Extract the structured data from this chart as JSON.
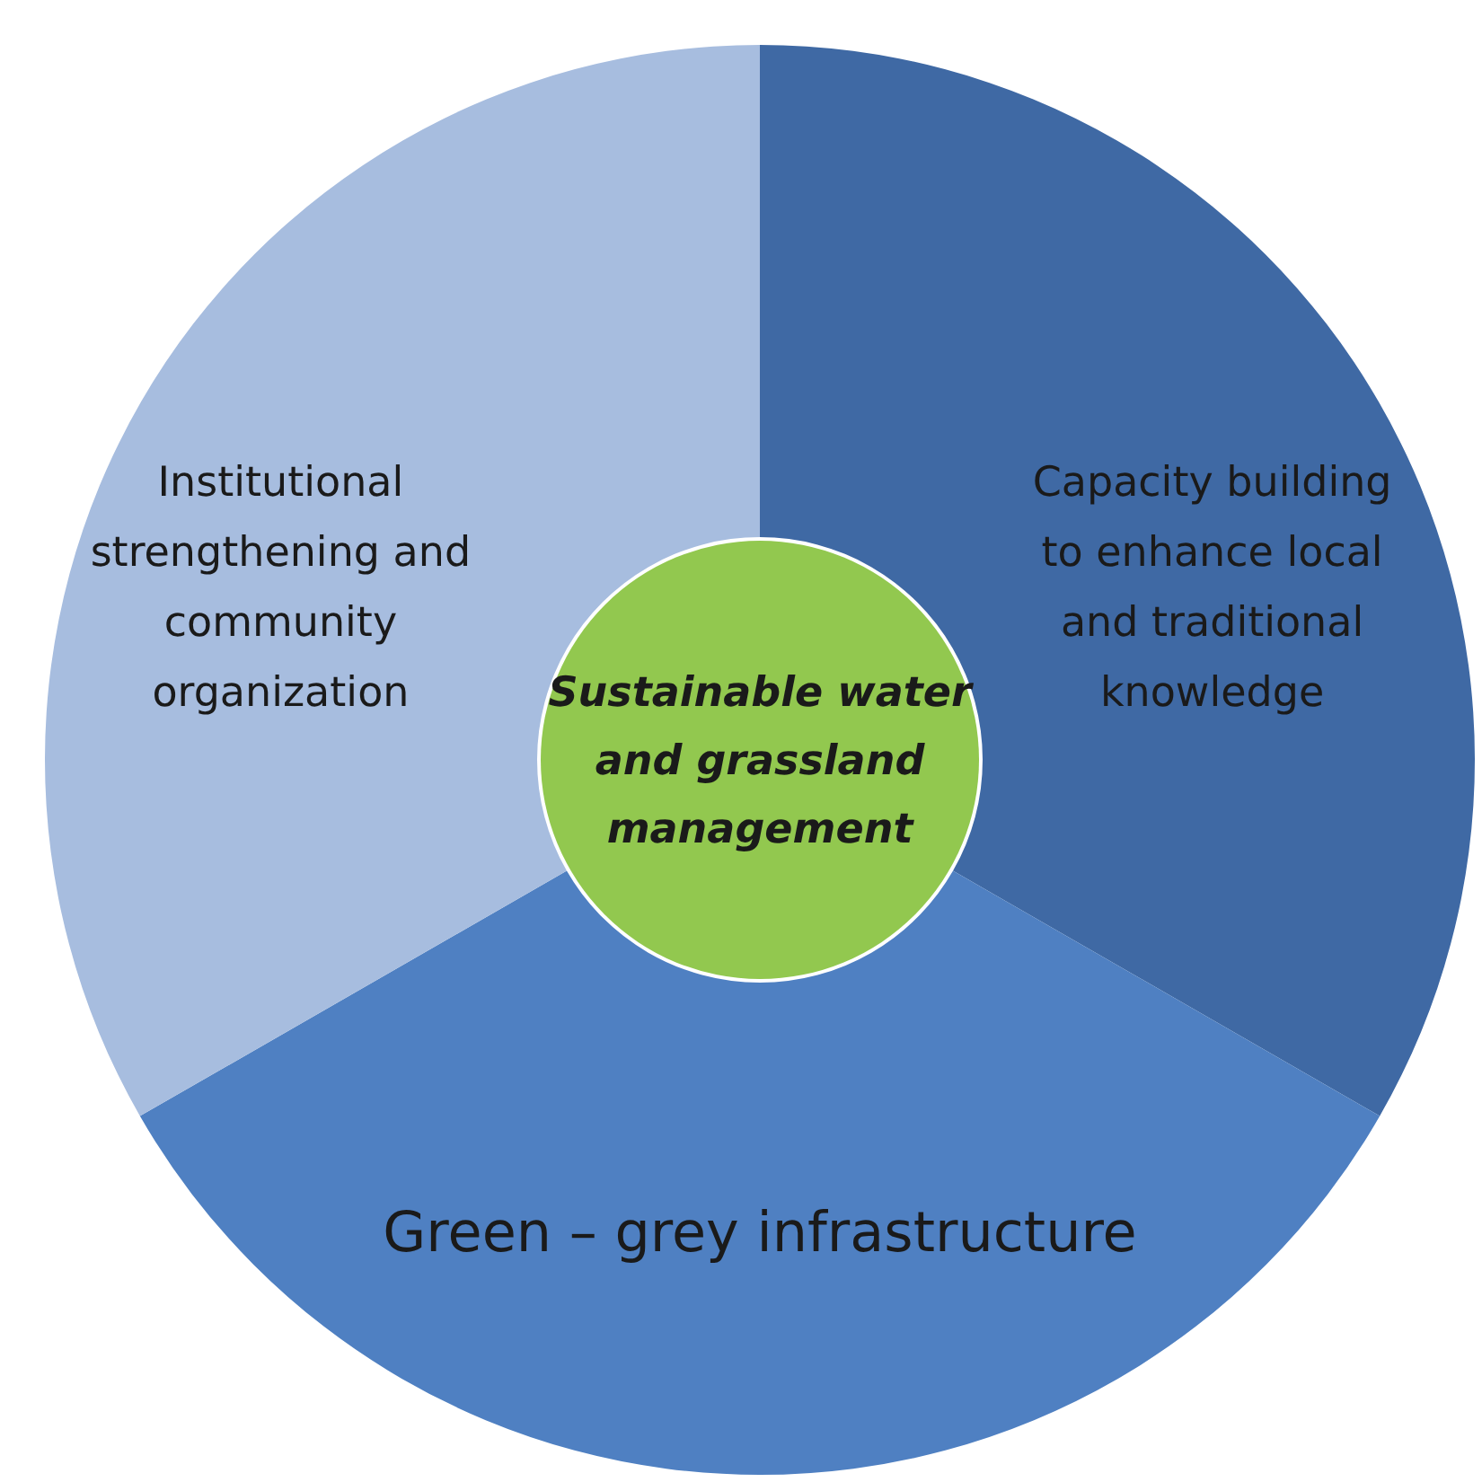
{
  "chart_data": {
    "type": "donut",
    "title": "Sustainable water and grassland management",
    "categories": [
      "Capacity building to enhance local and traditional knowledge",
      "Green – grey infrastructure",
      "Institutional strengthening and community organization"
    ],
    "values": [
      33.3,
      33.4,
      33.3
    ],
    "colors": [
      "#3f69a4",
      "#4f80c2",
      "#a7bddf"
    ]
  }
}
